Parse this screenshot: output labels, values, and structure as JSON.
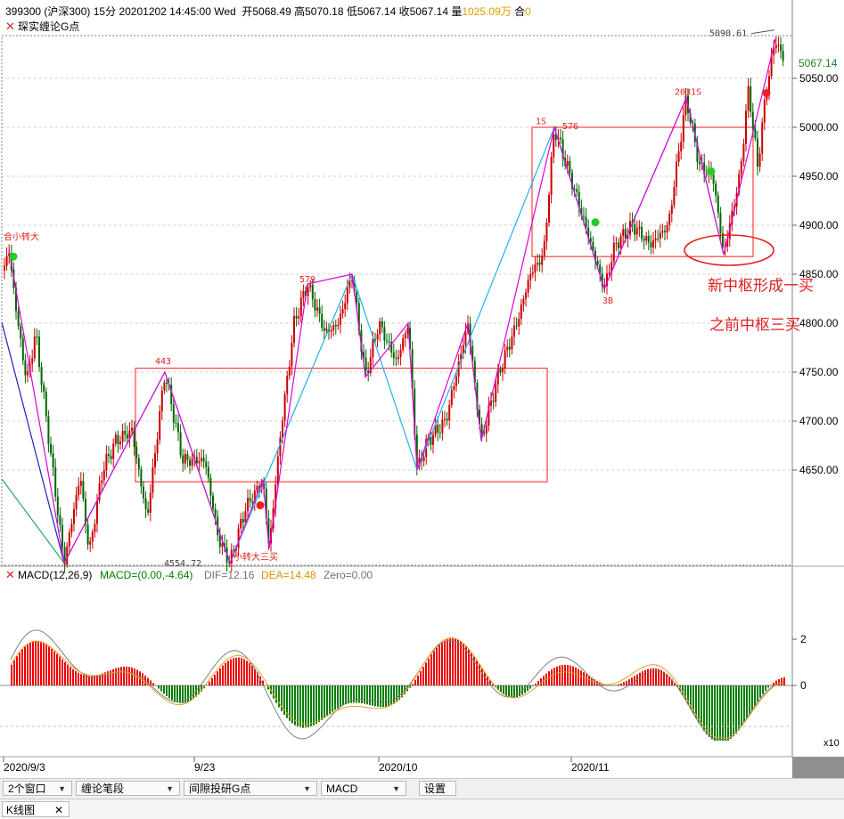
{
  "header": {
    "code": "399300",
    "name": "(沪深300)",
    "period": "15分",
    "datetime": "20201202 14:45:00 Wed",
    "open_label": "开",
    "open": "5068.49",
    "high_label": "高",
    "high": "5070.18",
    "low_label": "低",
    "low": "5067.14",
    "close_label": "收",
    "close": "5067.14",
    "vol_label": "量",
    "volume": "1025.09万",
    "hold_label": "合",
    "hold": "0"
  },
  "indicator_main": {
    "close_icon": "close-x-icon",
    "label": "琛实缠论G点"
  },
  "price_badge": "5067.14",
  "indicator_macd": {
    "close_icon": "close-x-icon",
    "name": "MACD(12,26,9)",
    "macd": "MACD=(0.00,-4.64)",
    "dif": "DIF=12.16",
    "dea": "DEA=14.48",
    "zero": "Zero=0.00"
  },
  "colors": {
    "up": "#e00000",
    "down": "#008000",
    "dif": "#808080",
    "dea": "#e8a020",
    "bi": "#dd00dd",
    "duan": "#20b0f0",
    "zs": "#ff4040",
    "note": "#e02020"
  },
  "chart_data": {
    "type": "candlestick",
    "y_ticks": [
      5050,
      5000,
      4950,
      4900,
      4850,
      4800,
      4750,
      4700,
      4650
    ],
    "y_tick_labels": [
      "5050.00",
      "5000.00",
      "4950.00",
      "4900.00",
      "4850.00",
      "4800.00",
      "4750.00",
      "4700.00",
      "4650.00"
    ],
    "x_labels": [
      "2020/9/3",
      "9/23",
      "2020/10",
      "2020/11"
    ],
    "macd_ticks": [
      2,
      0
    ],
    "macd_tick_labels": [
      "2",
      "0"
    ],
    "macd_scale_label": "x10",
    "price_path": [
      [
        0,
        4840
      ],
      [
        10,
        4875
      ],
      [
        20,
        4800
      ],
      [
        30,
        4740
      ],
      [
        40,
        4790
      ],
      [
        55,
        4680
      ],
      [
        72,
        4555
      ],
      [
        90,
        4645
      ],
      [
        100,
        4565
      ],
      [
        115,
        4650
      ],
      [
        130,
        4680
      ],
      [
        148,
        4690
      ],
      [
        165,
        4600
      ],
      [
        185,
        4750
      ],
      [
        205,
        4660
      ],
      [
        230,
        4660
      ],
      [
        245,
        4580
      ],
      [
        258,
        4555
      ],
      [
        275,
        4610
      ],
      [
        295,
        4640
      ],
      [
        302,
        4570
      ],
      [
        315,
        4690
      ],
      [
        330,
        4800
      ],
      [
        345,
        4840
      ],
      [
        365,
        4790
      ],
      [
        380,
        4800
      ],
      [
        395,
        4850
      ],
      [
        410,
        4745
      ],
      [
        425,
        4800
      ],
      [
        445,
        4760
      ],
      [
        458,
        4800
      ],
      [
        468,
        4650
      ],
      [
        480,
        4680
      ],
      [
        500,
        4700
      ],
      [
        510,
        4740
      ],
      [
        525,
        4800
      ],
      [
        540,
        4680
      ],
      [
        560,
        4750
      ],
      [
        580,
        4800
      ],
      [
        595,
        4850
      ],
      [
        610,
        4870
      ],
      [
        622,
        5000
      ],
      [
        640,
        4950
      ],
      [
        660,
        4890
      ],
      [
        678,
        4835
      ],
      [
        690,
        4880
      ],
      [
        710,
        4900
      ],
      [
        730,
        4880
      ],
      [
        750,
        4900
      ],
      [
        770,
        5030
      ],
      [
        785,
        4960
      ],
      [
        800,
        4950
      ],
      [
        812,
        4870
      ],
      [
        830,
        4950
      ],
      [
        840,
        5040
      ],
      [
        850,
        4960
      ],
      [
        860,
        5040
      ],
      [
        870,
        5090
      ],
      [
        880,
        5067
      ]
    ],
    "bi_path": [
      [
        10,
        4875
      ],
      [
        72,
        4555
      ],
      [
        185,
        4750
      ],
      [
        258,
        4555
      ],
      [
        295,
        4640
      ],
      [
        302,
        4570
      ],
      [
        345,
        4840
      ],
      [
        395,
        4850
      ],
      [
        410,
        4745
      ],
      [
        458,
        4800
      ],
      [
        468,
        4650
      ],
      [
        525,
        4800
      ],
      [
        540,
        4680
      ],
      [
        622,
        5000
      ],
      [
        678,
        4835
      ],
      [
        770,
        5030
      ],
      [
        812,
        4870
      ],
      [
        870,
        5090
      ]
    ],
    "duan_path": [
      [
        72,
        4555
      ],
      [
        185,
        4750
      ],
      [
        258,
        4555
      ],
      [
        395,
        4850
      ],
      [
        468,
        4650
      ],
      [
        622,
        5000
      ],
      [
        678,
        4835
      ],
      [
        770,
        5030
      ],
      [
        812,
        4870
      ]
    ],
    "zhongshu": [
      {
        "x1": 152,
        "x2": 614,
        "top": 4754,
        "bottom": 4638
      },
      {
        "x1": 597,
        "x2": 845,
        "top": 5000,
        "bottom": 4868
      }
    ],
    "annotations": [
      {
        "text": "合小转大",
        "x": 4,
        "price": 4885,
        "color": "#e02020"
      },
      {
        "text": "443",
        "x": 174,
        "price": 4758,
        "color": "#e02020"
      },
      {
        "text": "579",
        "x": 336,
        "price": 4842,
        "color": "#e02020"
      },
      {
        "text": "4554.72",
        "x": 184,
        "price": 4552,
        "color": "#404040"
      },
      {
        "text": "小转大三买",
        "x": 262,
        "price": 4558,
        "color": "#e02020"
      },
      {
        "text": "1S",
        "x": 601,
        "price": 5003,
        "color": "#e02020"
      },
      {
        "text": "576",
        "x": 631,
        "price": 4998,
        "color": "#e02020"
      },
      {
        "text": "3B",
        "x": 676,
        "price": 4820,
        "color": "#e02020"
      },
      {
        "text": "2031S",
        "x": 757,
        "price": 5033,
        "color": "#e02020"
      },
      {
        "text": "5090.61",
        "x": 796,
        "price": 5093,
        "color": "#404040"
      },
      {
        "text": "新中枢形成一买",
        "x": 794,
        "price": 4833,
        "color": "#e02020",
        "big": true
      },
      {
        "text": "之前中枢三买",
        "x": 796,
        "price": 4793,
        "color": "#e02020",
        "big": true
      }
    ],
    "dots": [
      {
        "x": 15,
        "price": 4868,
        "color": "#22cc22"
      },
      {
        "x": 292,
        "price": 4614,
        "color": "#ee2020"
      },
      {
        "x": 668,
        "price": 4903,
        "color": "#22cc22"
      },
      {
        "x": 798,
        "price": 4955,
        "color": "#22cc22"
      },
      {
        "x": 860,
        "price": 5035,
        "color": "#ee2020"
      }
    ]
  },
  "toolbar": {
    "window_select": "2个窗口",
    "chan_select": "缠论笔段",
    "indicator_select": "间隙投研G点",
    "sub_select": "MACD",
    "settings": "设置"
  },
  "tabs": {
    "kline_tab": "K线图"
  }
}
